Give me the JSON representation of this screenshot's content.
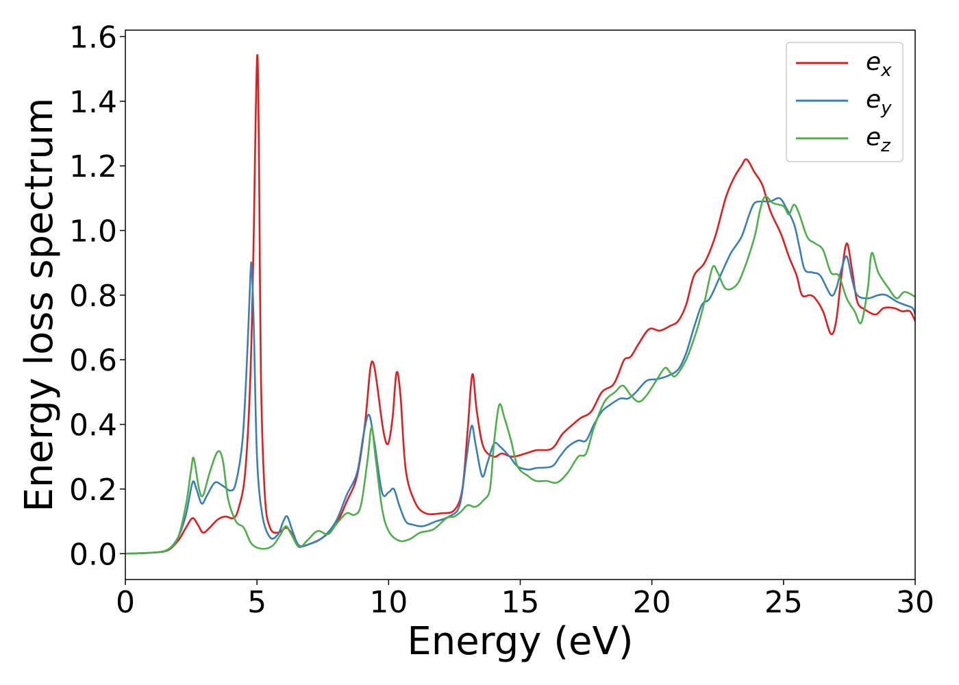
{
  "chart_data": {
    "type": "line",
    "title": "",
    "xlabel": "Energy (eV)",
    "ylabel": "Energy loss spectrum",
    "xlim": [
      0,
      30
    ],
    "ylim": [
      -0.08,
      1.62
    ],
    "xticks": [
      0,
      5,
      10,
      15,
      20,
      25,
      30
    ],
    "xtick_labels": [
      "0",
      "5",
      "10",
      "15",
      "20",
      "25",
      "30"
    ],
    "yticks": [
      0.0,
      0.2,
      0.4,
      0.6,
      0.8,
      1.0,
      1.2,
      1.4,
      1.6
    ],
    "ytick_labels": [
      "0.0",
      "0.2",
      "0.4",
      "0.6",
      "0.8",
      "1.0",
      "1.2",
      "1.4",
      "1.6"
    ],
    "grid": false,
    "legend_position": "top-right",
    "series": [
      {
        "name": "e_x",
        "legend_base": "e",
        "legend_sub": "x",
        "color": "#e41a1c",
        "points": [
          [
            0,
            0
          ],
          [
            1,
            0.003
          ],
          [
            1.6,
            0.01
          ],
          [
            2,
            0.04
          ],
          [
            2.3,
            0.08
          ],
          [
            2.55,
            0.11
          ],
          [
            2.75,
            0.09
          ],
          [
            2.95,
            0.065
          ],
          [
            3.2,
            0.08
          ],
          [
            3.5,
            0.105
          ],
          [
            3.8,
            0.115
          ],
          [
            4.1,
            0.11
          ],
          [
            4.3,
            0.14
          ],
          [
            4.55,
            0.25
          ],
          [
            4.75,
            0.55
          ],
          [
            4.88,
            1.0
          ],
          [
            4.95,
            1.35
          ],
          [
            5.02,
            1.54
          ],
          [
            5.08,
            1.2
          ],
          [
            5.15,
            0.55
          ],
          [
            5.3,
            0.18
          ],
          [
            5.5,
            0.08
          ],
          [
            5.8,
            0.065
          ],
          [
            6.1,
            0.08
          ],
          [
            6.3,
            0.065
          ],
          [
            6.6,
            0.025
          ],
          [
            7.0,
            0.03
          ],
          [
            7.5,
            0.05
          ],
          [
            8.0,
            0.09
          ],
          [
            8.4,
            0.16
          ],
          [
            8.8,
            0.24
          ],
          [
            9.1,
            0.4
          ],
          [
            9.3,
            0.57
          ],
          [
            9.42,
            0.59
          ],
          [
            9.55,
            0.53
          ],
          [
            9.8,
            0.38
          ],
          [
            9.98,
            0.34
          ],
          [
            10.15,
            0.42
          ],
          [
            10.3,
            0.56
          ],
          [
            10.45,
            0.49
          ],
          [
            10.65,
            0.26
          ],
          [
            11.0,
            0.16
          ],
          [
            11.4,
            0.125
          ],
          [
            12.0,
            0.125
          ],
          [
            12.5,
            0.135
          ],
          [
            12.8,
            0.2
          ],
          [
            13.0,
            0.38
          ],
          [
            13.18,
            0.555
          ],
          [
            13.35,
            0.44
          ],
          [
            13.6,
            0.33
          ],
          [
            14.0,
            0.3
          ],
          [
            14.3,
            0.31
          ],
          [
            14.7,
            0.3
          ],
          [
            15.2,
            0.31
          ],
          [
            15.6,
            0.32
          ],
          [
            16.2,
            0.325
          ],
          [
            16.6,
            0.37
          ],
          [
            17.0,
            0.4
          ],
          [
            17.3,
            0.42
          ],
          [
            17.7,
            0.44
          ],
          [
            18.1,
            0.5
          ],
          [
            18.5,
            0.52
          ],
          [
            18.7,
            0.55
          ],
          [
            18.95,
            0.6
          ],
          [
            19.2,
            0.61
          ],
          [
            19.5,
            0.65
          ],
          [
            19.9,
            0.695
          ],
          [
            20.3,
            0.69
          ],
          [
            20.7,
            0.705
          ],
          [
            21.0,
            0.72
          ],
          [
            21.3,
            0.77
          ],
          [
            21.6,
            0.86
          ],
          [
            22.0,
            0.9
          ],
          [
            22.4,
            0.98
          ],
          [
            22.8,
            1.1
          ],
          [
            23.1,
            1.16
          ],
          [
            23.4,
            1.2
          ],
          [
            23.6,
            1.22
          ],
          [
            23.9,
            1.18
          ],
          [
            24.2,
            1.14
          ],
          [
            24.5,
            1.06
          ],
          [
            24.9,
            0.99
          ],
          [
            25.2,
            0.92
          ],
          [
            25.5,
            0.86
          ],
          [
            25.7,
            0.8
          ],
          [
            26.0,
            0.8
          ],
          [
            26.2,
            0.79
          ],
          [
            26.5,
            0.75
          ],
          [
            26.8,
            0.68
          ],
          [
            27.0,
            0.72
          ],
          [
            27.2,
            0.86
          ],
          [
            27.4,
            0.96
          ],
          [
            27.6,
            0.88
          ],
          [
            27.8,
            0.78
          ],
          [
            28.1,
            0.755
          ],
          [
            28.5,
            0.74
          ],
          [
            28.8,
            0.76
          ],
          [
            29.2,
            0.76
          ],
          [
            29.5,
            0.75
          ],
          [
            29.8,
            0.75
          ],
          [
            30.0,
            0.72
          ]
        ]
      },
      {
        "name": "e_y",
        "legend_base": "e",
        "legend_sub": "y",
        "color": "#377eb8",
        "points": [
          [
            0,
            0
          ],
          [
            1,
            0.003
          ],
          [
            1.6,
            0.012
          ],
          [
            2,
            0.05
          ],
          [
            2.3,
            0.12
          ],
          [
            2.55,
            0.22
          ],
          [
            2.7,
            0.2
          ],
          [
            2.9,
            0.155
          ],
          [
            3.1,
            0.18
          ],
          [
            3.4,
            0.22
          ],
          [
            3.7,
            0.21
          ],
          [
            4.0,
            0.195
          ],
          [
            4.2,
            0.22
          ],
          [
            4.45,
            0.35
          ],
          [
            4.62,
            0.6
          ],
          [
            4.75,
            0.86
          ],
          [
            4.8,
            0.885
          ],
          [
            4.88,
            0.7
          ],
          [
            5.0,
            0.3
          ],
          [
            5.2,
            0.12
          ],
          [
            5.5,
            0.05
          ],
          [
            5.8,
            0.06
          ],
          [
            6.0,
            0.1
          ],
          [
            6.15,
            0.115
          ],
          [
            6.35,
            0.07
          ],
          [
            6.6,
            0.025
          ],
          [
            7.0,
            0.03
          ],
          [
            7.5,
            0.05
          ],
          [
            8.0,
            0.1
          ],
          [
            8.4,
            0.18
          ],
          [
            8.8,
            0.25
          ],
          [
            9.05,
            0.37
          ],
          [
            9.25,
            0.43
          ],
          [
            9.45,
            0.35
          ],
          [
            9.75,
            0.19
          ],
          [
            10.0,
            0.19
          ],
          [
            10.2,
            0.2
          ],
          [
            10.4,
            0.15
          ],
          [
            10.65,
            0.1
          ],
          [
            10.9,
            0.09
          ],
          [
            11.3,
            0.085
          ],
          [
            11.8,
            0.1
          ],
          [
            12.3,
            0.115
          ],
          [
            12.7,
            0.15
          ],
          [
            12.95,
            0.29
          ],
          [
            13.15,
            0.395
          ],
          [
            13.3,
            0.34
          ],
          [
            13.55,
            0.24
          ],
          [
            13.75,
            0.28
          ],
          [
            14.0,
            0.34
          ],
          [
            14.25,
            0.33
          ],
          [
            14.6,
            0.3
          ],
          [
            14.9,
            0.27
          ],
          [
            15.3,
            0.26
          ],
          [
            15.6,
            0.265
          ],
          [
            16.2,
            0.27
          ],
          [
            16.5,
            0.3
          ],
          [
            16.8,
            0.33
          ],
          [
            17.2,
            0.35
          ],
          [
            17.5,
            0.35
          ],
          [
            17.8,
            0.4
          ],
          [
            18.1,
            0.44
          ],
          [
            18.4,
            0.46
          ],
          [
            18.8,
            0.48
          ],
          [
            19.1,
            0.48
          ],
          [
            19.4,
            0.5
          ],
          [
            19.8,
            0.535
          ],
          [
            20.2,
            0.54
          ],
          [
            20.6,
            0.55
          ],
          [
            21.0,
            0.57
          ],
          [
            21.3,
            0.62
          ],
          [
            21.6,
            0.7
          ],
          [
            21.9,
            0.77
          ],
          [
            22.2,
            0.79
          ],
          [
            22.6,
            0.86
          ],
          [
            23.0,
            0.93
          ],
          [
            23.4,
            0.98
          ],
          [
            23.7,
            1.05
          ],
          [
            23.9,
            1.085
          ],
          [
            24.2,
            1.09
          ],
          [
            24.5,
            1.09
          ],
          [
            24.85,
            1.1
          ],
          [
            25.1,
            1.07
          ],
          [
            25.4,
            1.02
          ],
          [
            25.6,
            0.95
          ],
          [
            25.8,
            0.88
          ],
          [
            26.1,
            0.87
          ],
          [
            26.4,
            0.86
          ],
          [
            26.8,
            0.8
          ],
          [
            27.0,
            0.82
          ],
          [
            27.2,
            0.88
          ],
          [
            27.4,
            0.92
          ],
          [
            27.6,
            0.85
          ],
          [
            27.8,
            0.8
          ],
          [
            28.2,
            0.79
          ],
          [
            28.6,
            0.8
          ],
          [
            28.9,
            0.8
          ],
          [
            29.3,
            0.78
          ],
          [
            29.6,
            0.77
          ],
          [
            29.9,
            0.76
          ],
          [
            30.0,
            0.74
          ]
        ]
      },
      {
        "name": "e_z",
        "legend_base": "e",
        "legend_sub": "z",
        "color": "#4daf4a",
        "points": [
          [
            0,
            0
          ],
          [
            1,
            0.003
          ],
          [
            1.6,
            0.012
          ],
          [
            2,
            0.05
          ],
          [
            2.3,
            0.15
          ],
          [
            2.5,
            0.26
          ],
          [
            2.6,
            0.295
          ],
          [
            2.8,
            0.2
          ],
          [
            2.95,
            0.18
          ],
          [
            3.2,
            0.25
          ],
          [
            3.5,
            0.315
          ],
          [
            3.7,
            0.29
          ],
          [
            3.9,
            0.17
          ],
          [
            4.2,
            0.1
          ],
          [
            4.5,
            0.08
          ],
          [
            4.8,
            0.03
          ],
          [
            5.2,
            0.015
          ],
          [
            5.6,
            0.025
          ],
          [
            5.9,
            0.06
          ],
          [
            6.1,
            0.085
          ],
          [
            6.3,
            0.06
          ],
          [
            6.6,
            0.02
          ],
          [
            6.9,
            0.04
          ],
          [
            7.3,
            0.07
          ],
          [
            7.7,
            0.06
          ],
          [
            8.0,
            0.09
          ],
          [
            8.4,
            0.125
          ],
          [
            8.7,
            0.12
          ],
          [
            8.95,
            0.15
          ],
          [
            9.2,
            0.29
          ],
          [
            9.35,
            0.39
          ],
          [
            9.5,
            0.3
          ],
          [
            9.75,
            0.14
          ],
          [
            10.0,
            0.07
          ],
          [
            10.4,
            0.04
          ],
          [
            10.8,
            0.045
          ],
          [
            11.2,
            0.065
          ],
          [
            11.7,
            0.075
          ],
          [
            12.2,
            0.11
          ],
          [
            12.5,
            0.115
          ],
          [
            12.75,
            0.13
          ],
          [
            13.0,
            0.15
          ],
          [
            13.3,
            0.145
          ],
          [
            13.6,
            0.165
          ],
          [
            13.85,
            0.2
          ],
          [
            14.0,
            0.34
          ],
          [
            14.2,
            0.46
          ],
          [
            14.4,
            0.42
          ],
          [
            14.65,
            0.35
          ],
          [
            14.9,
            0.27
          ],
          [
            15.3,
            0.24
          ],
          [
            15.6,
            0.225
          ],
          [
            16.0,
            0.225
          ],
          [
            16.4,
            0.22
          ],
          [
            16.8,
            0.25
          ],
          [
            17.2,
            0.3
          ],
          [
            17.5,
            0.31
          ],
          [
            17.8,
            0.39
          ],
          [
            18.2,
            0.47
          ],
          [
            18.6,
            0.5
          ],
          [
            18.9,
            0.52
          ],
          [
            19.2,
            0.49
          ],
          [
            19.5,
            0.47
          ],
          [
            19.8,
            0.49
          ],
          [
            20.2,
            0.54
          ],
          [
            20.5,
            0.575
          ],
          [
            20.7,
            0.56
          ],
          [
            20.9,
            0.55
          ],
          [
            21.3,
            0.6
          ],
          [
            21.7,
            0.69
          ],
          [
            22.0,
            0.78
          ],
          [
            22.3,
            0.885
          ],
          [
            22.5,
            0.87
          ],
          [
            22.8,
            0.82
          ],
          [
            23.2,
            0.83
          ],
          [
            23.5,
            0.88
          ],
          [
            23.9,
            0.98
          ],
          [
            24.1,
            1.06
          ],
          [
            24.3,
            1.105
          ],
          [
            24.6,
            1.085
          ],
          [
            25.0,
            1.075
          ],
          [
            25.2,
            1.05
          ],
          [
            25.4,
            1.08
          ],
          [
            25.6,
            1.05
          ],
          [
            25.9,
            0.98
          ],
          [
            26.2,
            0.96
          ],
          [
            26.5,
            0.94
          ],
          [
            26.8,
            0.87
          ],
          [
            27.1,
            0.86
          ],
          [
            27.4,
            0.79
          ],
          [
            27.7,
            0.75
          ],
          [
            27.95,
            0.715
          ],
          [
            28.2,
            0.82
          ],
          [
            28.35,
            0.93
          ],
          [
            28.6,
            0.87
          ],
          [
            29.0,
            0.82
          ],
          [
            29.3,
            0.79
          ],
          [
            29.6,
            0.81
          ],
          [
            30.0,
            0.795
          ]
        ]
      }
    ]
  }
}
